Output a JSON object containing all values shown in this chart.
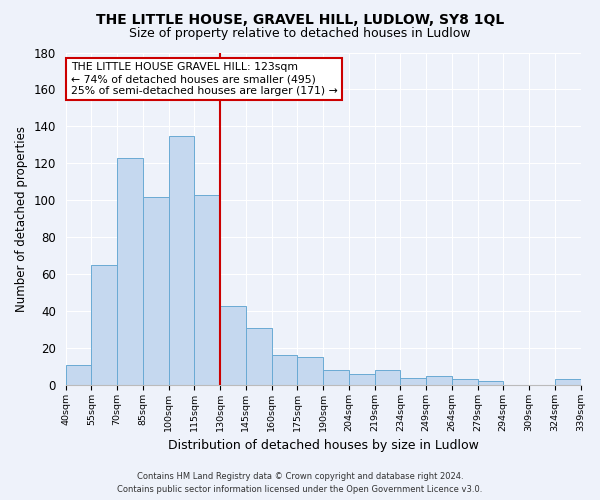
{
  "title": "THE LITTLE HOUSE, GRAVEL HILL, LUDLOW, SY8 1QL",
  "subtitle": "Size of property relative to detached houses in Ludlow",
  "xlabel": "Distribution of detached houses by size in Ludlow",
  "ylabel": "Number of detached properties",
  "bar_labels": [
    "40sqm",
    "55sqm",
    "70sqm",
    "85sqm",
    "100sqm",
    "115sqm",
    "130sqm",
    "145sqm",
    "160sqm",
    "175sqm",
    "190sqm",
    "204sqm",
    "219sqm",
    "234sqm",
    "249sqm",
    "264sqm",
    "279sqm",
    "294sqm",
    "309sqm",
    "324sqm",
    "339sqm"
  ],
  "bar_values": [
    11,
    65,
    123,
    102,
    135,
    103,
    43,
    31,
    16,
    15,
    8,
    6,
    8,
    4,
    5,
    3,
    2,
    0,
    0,
    3
  ],
  "bar_color": "#c5d8ef",
  "bar_edge_color": "#6aaad4",
  "vline_x_idx": 6,
  "vline_color": "#cc0000",
  "annotation_text": "THE LITTLE HOUSE GRAVEL HILL: 123sqm\n← 74% of detached houses are smaller (495)\n25% of semi-detached houses are larger (171) →",
  "annotation_box_color": "#ffffff",
  "annotation_box_edge": "#cc0000",
  "ylim": [
    0,
    180
  ],
  "yticks": [
    0,
    20,
    40,
    60,
    80,
    100,
    120,
    140,
    160,
    180
  ],
  "footer_line1": "Contains HM Land Registry data © Crown copyright and database right 2024.",
  "footer_line2": "Contains public sector information licensed under the Open Government Licence v3.0.",
  "bg_color": "#eef2fa",
  "grid_color": "#ffffff",
  "title_fontsize": 10,
  "subtitle_fontsize": 9
}
